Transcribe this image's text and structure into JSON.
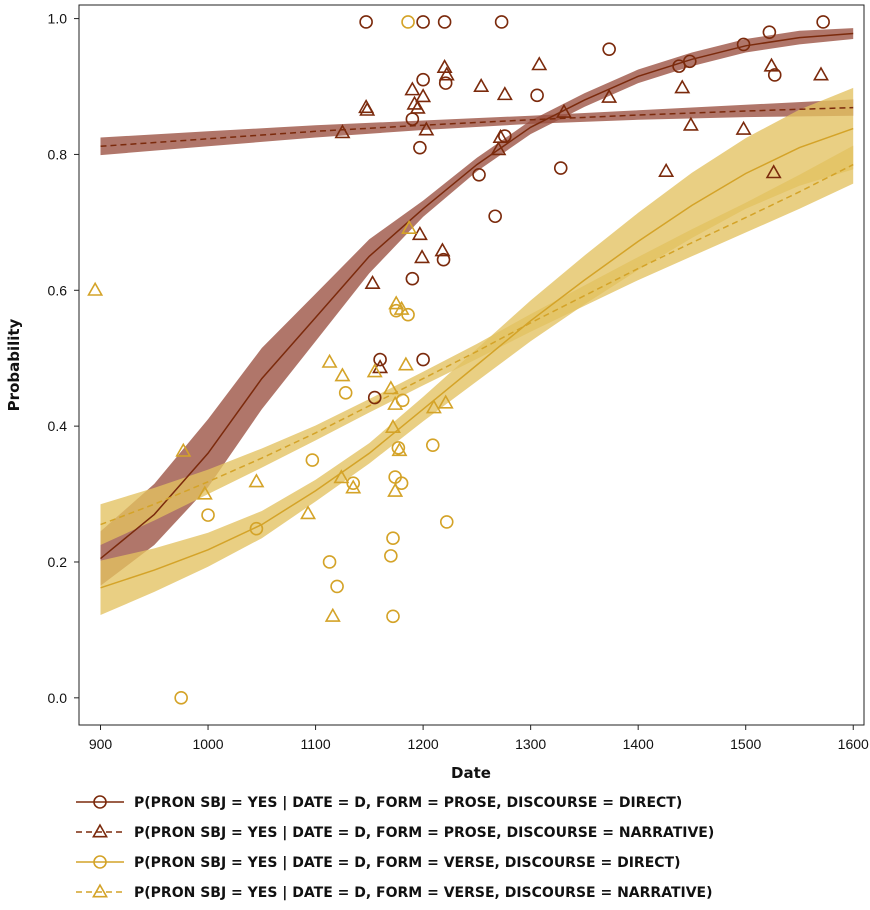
{
  "chart_data": {
    "type": "scatter",
    "xlabel": "Date",
    "ylabel": "Probability",
    "xlim": [
      880,
      1610
    ],
    "ylim": [
      -0.04,
      1.02
    ],
    "x_ticks": [
      900,
      1000,
      1100,
      1200,
      1300,
      1400,
      1500,
      1600
    ],
    "y_ticks": [
      0.0,
      0.2,
      0.4,
      0.6,
      0.8,
      1.0
    ],
    "y_tick_labels": [
      "0.0",
      "0.2",
      "0.4",
      "0.6",
      "0.8",
      "1.0"
    ],
    "grid": false,
    "legend_placement": "bottom",
    "series": [
      {
        "name": "P(PRON SBJ = YES | DATE = D, FORM = PROSE, DISCOURSE = DIRECT)",
        "color": "#7b2a0c",
        "band_color": "#9a5040",
        "marker": "circle",
        "dash": false,
        "curve": [
          [
            900,
            0.205
          ],
          [
            950,
            0.27
          ],
          [
            1000,
            0.36
          ],
          [
            1050,
            0.47
          ],
          [
            1100,
            0.56
          ],
          [
            1150,
            0.65
          ],
          [
            1200,
            0.72
          ],
          [
            1250,
            0.785
          ],
          [
            1300,
            0.84
          ],
          [
            1350,
            0.88
          ],
          [
            1400,
            0.915
          ],
          [
            1450,
            0.94
          ],
          [
            1500,
            0.96
          ],
          [
            1550,
            0.972
          ],
          [
            1600,
            0.978
          ]
        ],
        "band_width": [
          0.04,
          0.045,
          0.05,
          0.045,
          0.035,
          0.025,
          0.012,
          0.01,
          0.01,
          0.01,
          0.01,
          0.01,
          0.01,
          0.01,
          0.008
        ],
        "points": [
          [
            1147,
            0.995
          ],
          [
            1200,
            0.995
          ],
          [
            1220,
            0.995
          ],
          [
            1273,
            0.995
          ],
          [
            1200,
            0.91
          ],
          [
            1221,
            0.905
          ],
          [
            1306,
            0.887
          ],
          [
            1373,
            0.955
          ],
          [
            1438,
            0.93
          ],
          [
            1448,
            0.937
          ],
          [
            1498,
            0.962
          ],
          [
            1522,
            0.98
          ],
          [
            1527,
            0.917
          ],
          [
            1572,
            0.995
          ],
          [
            1190,
            0.852
          ],
          [
            1197,
            0.81
          ],
          [
            1276,
            0.827
          ],
          [
            1252,
            0.77
          ],
          [
            1328,
            0.78
          ],
          [
            1267,
            0.709
          ],
          [
            1219,
            0.645
          ],
          [
            1190,
            0.617
          ],
          [
            1160,
            0.498
          ],
          [
            1200,
            0.498
          ],
          [
            1155,
            0.442
          ]
        ]
      },
      {
        "name": "P(PRON SBJ = YES | DATE = D, FORM = PROSE, DISCOURSE = NARRATIVE)",
        "color": "#7b2a0c",
        "band_color": "#9a5040",
        "marker": "triangle",
        "dash": true,
        "curve": [
          [
            900,
            0.812
          ],
          [
            1000,
            0.823
          ],
          [
            1100,
            0.834
          ],
          [
            1200,
            0.843
          ],
          [
            1300,
            0.851
          ],
          [
            1400,
            0.858
          ],
          [
            1500,
            0.864
          ],
          [
            1600,
            0.869
          ]
        ],
        "band_width": [
          0.013,
          0.011,
          0.009,
          0.007,
          0.006,
          0.007,
          0.009,
          0.012
        ],
        "points": [
          [
            1125,
            0.832
          ],
          [
            1148,
            0.865
          ],
          [
            1147,
            0.869
          ],
          [
            1190,
            0.895
          ],
          [
            1192,
            0.874
          ],
          [
            1195,
            0.868
          ],
          [
            1200,
            0.885
          ],
          [
            1203,
            0.836
          ],
          [
            1220,
            0.928
          ],
          [
            1222,
            0.917
          ],
          [
            1254,
            0.9
          ],
          [
            1276,
            0.888
          ],
          [
            1308,
            0.932
          ],
          [
            1331,
            0.862
          ],
          [
            1373,
            0.884
          ],
          [
            1270,
            0.807
          ],
          [
            1272,
            0.825
          ],
          [
            1441,
            0.898
          ],
          [
            1449,
            0.843
          ],
          [
            1498,
            0.837
          ],
          [
            1524,
            0.93
          ],
          [
            1526,
            0.773
          ],
          [
            1570,
            0.917
          ],
          [
            1426,
            0.775
          ],
          [
            1197,
            0.682
          ],
          [
            1199,
            0.648
          ],
          [
            1218,
            0.658
          ],
          [
            1153,
            0.61
          ],
          [
            1160,
            0.486
          ]
        ]
      },
      {
        "name": "P(PRON SBJ = YES | DATE = D, FORM = VERSE, DISCOURSE = DIRECT)",
        "color": "#d4a328",
        "band_color": "#e3c160",
        "marker": "circle",
        "dash": false,
        "curve": [
          [
            900,
            0.162
          ],
          [
            950,
            0.188
          ],
          [
            1000,
            0.218
          ],
          [
            1050,
            0.255
          ],
          [
            1100,
            0.305
          ],
          [
            1150,
            0.36
          ],
          [
            1200,
            0.425
          ],
          [
            1250,
            0.49
          ],
          [
            1300,
            0.555
          ],
          [
            1350,
            0.615
          ],
          [
            1400,
            0.672
          ],
          [
            1450,
            0.725
          ],
          [
            1500,
            0.772
          ],
          [
            1550,
            0.81
          ],
          [
            1600,
            0.838
          ]
        ],
        "band_width": [
          0.04,
          0.032,
          0.025,
          0.02,
          0.016,
          0.015,
          0.018,
          0.024,
          0.03,
          0.036,
          0.042,
          0.048,
          0.052,
          0.056,
          0.06
        ],
        "points": [
          [
            1186,
            0.995
          ],
          [
            975,
            0.0
          ],
          [
            1000,
            0.269
          ],
          [
            1045,
            0.249
          ],
          [
            1097,
            0.35
          ],
          [
            1113,
            0.2
          ],
          [
            1120,
            0.164
          ],
          [
            1128,
            0.449
          ],
          [
            1135,
            0.316
          ],
          [
            1172,
            0.235
          ],
          [
            1170,
            0.209
          ],
          [
            1172,
            0.12
          ],
          [
            1174,
            0.325
          ],
          [
            1177,
            0.368
          ],
          [
            1181,
            0.438
          ],
          [
            1186,
            0.564
          ],
          [
            1209,
            0.372
          ],
          [
            1222,
            0.259
          ],
          [
            1175,
            0.57
          ],
          [
            1180,
            0.316
          ]
        ]
      },
      {
        "name": "P(PRON SBJ = YES | DATE = D, FORM = VERSE, DISCOURSE = NARRATIVE)",
        "color": "#d4a328",
        "band_color": "#e3c160",
        "marker": "triangle",
        "dash": true,
        "curve": [
          [
            900,
            0.255
          ],
          [
            950,
            0.285
          ],
          [
            1000,
            0.318
          ],
          [
            1050,
            0.353
          ],
          [
            1100,
            0.39
          ],
          [
            1150,
            0.43
          ],
          [
            1200,
            0.47
          ],
          [
            1250,
            0.51
          ],
          [
            1300,
            0.552
          ],
          [
            1350,
            0.592
          ],
          [
            1400,
            0.632
          ],
          [
            1450,
            0.67
          ],
          [
            1500,
            0.707
          ],
          [
            1550,
            0.745
          ],
          [
            1600,
            0.785
          ]
        ],
        "band_width": [
          0.03,
          0.024,
          0.018,
          0.014,
          0.011,
          0.01,
          0.01,
          0.011,
          0.013,
          0.015,
          0.017,
          0.02,
          0.022,
          0.025,
          0.028
        ],
        "points": [
          [
            895,
            0.6
          ],
          [
            977,
            0.363
          ],
          [
            997,
            0.3
          ],
          [
            1045,
            0.318
          ],
          [
            1093,
            0.271
          ],
          [
            1113,
            0.494
          ],
          [
            1116,
            0.12
          ],
          [
            1124,
            0.324
          ],
          [
            1125,
            0.474
          ],
          [
            1135,
            0.309
          ],
          [
            1155,
            0.48
          ],
          [
            1170,
            0.455
          ],
          [
            1172,
            0.398
          ],
          [
            1174,
            0.432
          ],
          [
            1174,
            0.304
          ],
          [
            1175,
            0.58
          ],
          [
            1178,
            0.364
          ],
          [
            1180,
            0.572
          ],
          [
            1184,
            0.49
          ],
          [
            1187,
            0.691
          ],
          [
            1210,
            0.427
          ],
          [
            1221,
            0.434
          ]
        ]
      }
    ]
  }
}
